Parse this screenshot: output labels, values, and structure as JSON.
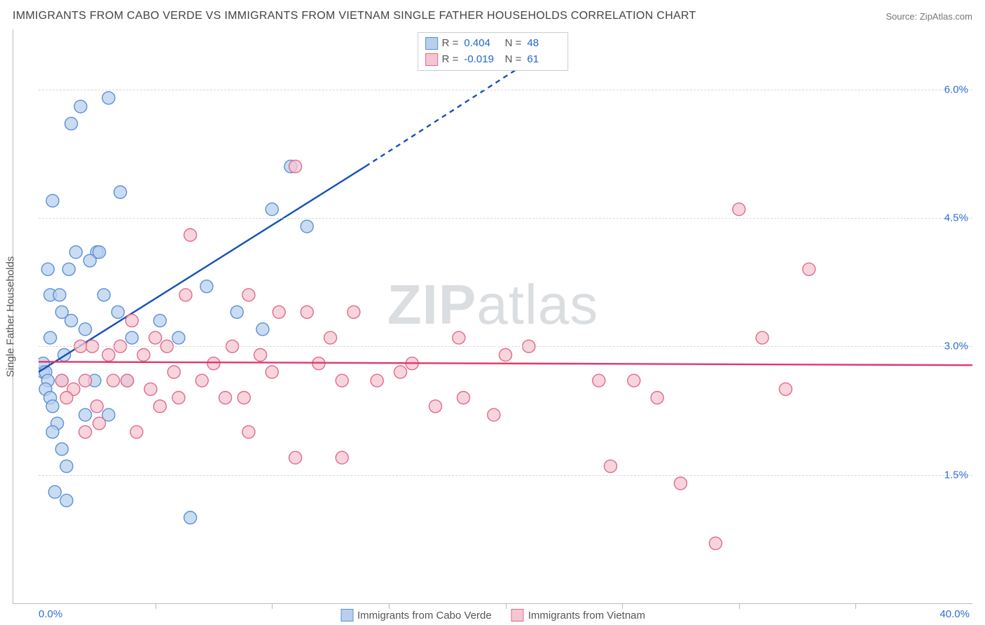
{
  "title": "IMMIGRANTS FROM CABO VERDE VS IMMIGRANTS FROM VIETNAM SINGLE FATHER HOUSEHOLDS CORRELATION CHART",
  "source_label": "Source: ",
  "source_name": "ZipAtlas.com",
  "watermark_a": "ZIP",
  "watermark_b": "atlas",
  "chart": {
    "type": "scatter",
    "ylabel": "Single Father Households",
    "xlim": [
      0,
      40
    ],
    "ylim": [
      0,
      6.7
    ],
    "x_endpoints": [
      "0.0%",
      "40.0%"
    ],
    "x_endpoint_color": "#2f6fd0",
    "xtick_positions": [
      5,
      10,
      15,
      20,
      25,
      30,
      35
    ],
    "yticks": [
      {
        "v": 1.5,
        "label": "1.5%"
      },
      {
        "v": 3.0,
        "label": "3.0%"
      },
      {
        "v": 4.5,
        "label": "4.5%"
      },
      {
        "v": 6.0,
        "label": "6.0%"
      }
    ],
    "ytick_color": "#2f6fd0",
    "grid_color": "#d9d9d9",
    "axis_color": "#bbbbbb",
    "background": "#ffffff",
    "marker_radius": 9,
    "marker_stroke_width": 1.4,
    "series": [
      {
        "name": "Immigrants from Cabo Verde",
        "fill": "#b8d0ee",
        "stroke": "#5b8fd6",
        "stats": {
          "R": "0.404",
          "N": "48"
        },
        "trend": {
          "x1": 0,
          "y1": 2.7,
          "x2": 14,
          "y2": 5.1,
          "dash_to_x": 22,
          "dash_to_y": 6.5,
          "color": "#1652b5",
          "width": 2.4
        },
        "points": [
          [
            0.2,
            2.7
          ],
          [
            0.2,
            2.8
          ],
          [
            0.3,
            2.7
          ],
          [
            0.4,
            2.6
          ],
          [
            0.3,
            2.5
          ],
          [
            0.5,
            2.4
          ],
          [
            0.6,
            2.3
          ],
          [
            0.8,
            2.1
          ],
          [
            0.6,
            2.0
          ],
          [
            1.0,
            1.8
          ],
          [
            1.2,
            1.6
          ],
          [
            1.1,
            2.9
          ],
          [
            0.6,
            4.7
          ],
          [
            1.4,
            5.6
          ],
          [
            1.8,
            5.8
          ],
          [
            3.0,
            5.9
          ],
          [
            3.5,
            4.8
          ],
          [
            2.5,
            4.1
          ],
          [
            2.2,
            4.0
          ],
          [
            1.3,
            3.9
          ],
          [
            0.5,
            3.6
          ],
          [
            1.0,
            3.4
          ],
          [
            1.4,
            3.3
          ],
          [
            2.0,
            3.2
          ],
          [
            2.8,
            3.6
          ],
          [
            3.4,
            3.4
          ],
          [
            4.0,
            3.1
          ],
          [
            5.2,
            3.3
          ],
          [
            6.0,
            3.1
          ],
          [
            7.2,
            3.7
          ],
          [
            8.5,
            3.4
          ],
          [
            9.6,
            3.2
          ],
          [
            10.0,
            4.6
          ],
          [
            10.8,
            5.1
          ],
          [
            11.5,
            4.4
          ],
          [
            0.7,
            1.3
          ],
          [
            1.2,
            1.2
          ],
          [
            2.0,
            2.2
          ],
          [
            2.4,
            2.6
          ],
          [
            3.0,
            2.2
          ],
          [
            3.8,
            2.6
          ],
          [
            2.6,
            4.1
          ],
          [
            1.0,
            2.6
          ],
          [
            6.5,
            1.0
          ],
          [
            0.5,
            3.1
          ],
          [
            0.9,
            3.6
          ],
          [
            1.6,
            4.1
          ],
          [
            0.4,
            3.9
          ]
        ]
      },
      {
        "name": "Immigrants from Vietnam",
        "fill": "#f5c6d1",
        "stroke": "#e06a8a",
        "stats": {
          "R": "-0.019",
          "N": "61"
        },
        "trend": {
          "x1": 0,
          "y1": 2.82,
          "x2": 40,
          "y2": 2.78,
          "color": "#e2376a",
          "width": 2.4
        },
        "points": [
          [
            1.0,
            2.6
          ],
          [
            1.5,
            2.5
          ],
          [
            1.2,
            2.4
          ],
          [
            2.0,
            2.6
          ],
          [
            2.5,
            2.3
          ],
          [
            2.0,
            2.0
          ],
          [
            2.6,
            2.1
          ],
          [
            1.8,
            3.0
          ],
          [
            2.3,
            3.0
          ],
          [
            3.2,
            2.6
          ],
          [
            3.5,
            3.0
          ],
          [
            3.8,
            2.6
          ],
          [
            4.0,
            3.3
          ],
          [
            4.5,
            2.9
          ],
          [
            4.8,
            2.5
          ],
          [
            5.0,
            3.1
          ],
          [
            5.2,
            2.3
          ],
          [
            5.5,
            3.0
          ],
          [
            6.0,
            2.4
          ],
          [
            6.3,
            3.6
          ],
          [
            6.5,
            4.3
          ],
          [
            7.0,
            2.6
          ],
          [
            7.5,
            2.8
          ],
          [
            8.0,
            2.4
          ],
          [
            8.3,
            3.0
          ],
          [
            8.8,
            2.4
          ],
          [
            9.0,
            3.6
          ],
          [
            9.5,
            2.9
          ],
          [
            10.0,
            2.7
          ],
          [
            10.3,
            3.4
          ],
          [
            11.0,
            5.1
          ],
          [
            11.5,
            3.4
          ],
          [
            12.0,
            2.8
          ],
          [
            12.5,
            3.1
          ],
          [
            13.0,
            2.6
          ],
          [
            13.5,
            3.4
          ],
          [
            11.0,
            1.7
          ],
          [
            13.0,
            1.7
          ],
          [
            14.5,
            2.6
          ],
          [
            15.5,
            2.7
          ],
          [
            16.0,
            2.8
          ],
          [
            17.0,
            2.3
          ],
          [
            18.0,
            3.1
          ],
          [
            18.2,
            2.4
          ],
          [
            19.5,
            2.2
          ],
          [
            20.0,
            2.9
          ],
          [
            21.0,
            3.0
          ],
          [
            24.0,
            2.6
          ],
          [
            24.5,
            1.6
          ],
          [
            25.5,
            2.6
          ],
          [
            26.5,
            2.4
          ],
          [
            27.5,
            1.4
          ],
          [
            30.0,
            4.6
          ],
          [
            31.0,
            3.1
          ],
          [
            32.0,
            2.5
          ],
          [
            33.0,
            3.9
          ],
          [
            29.0,
            0.7
          ],
          [
            9.0,
            2.0
          ],
          [
            3.0,
            2.9
          ],
          [
            4.2,
            2.0
          ],
          [
            5.8,
            2.7
          ]
        ]
      }
    ]
  }
}
